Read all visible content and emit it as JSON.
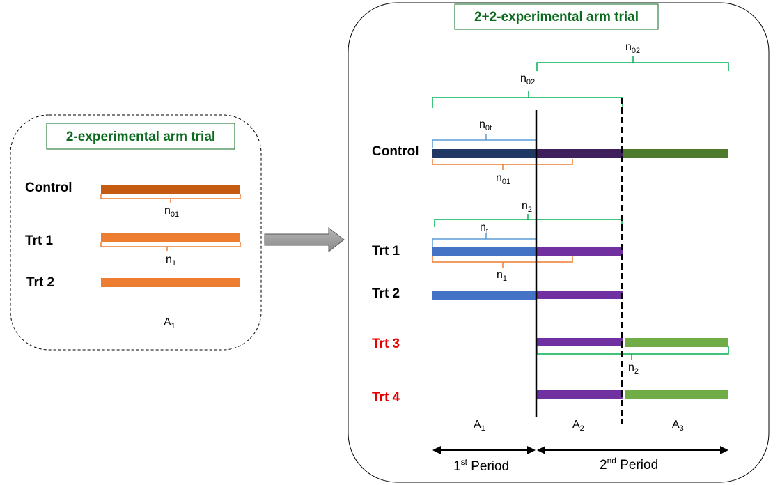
{
  "left_panel": {
    "title": "2-experimental arm trial",
    "arms": [
      "Control",
      "Trt 1",
      "Trt 2"
    ],
    "labels": {
      "n01": {
        "base": "n",
        "sub": "01"
      },
      "n1": {
        "base": "n",
        "sub": "1"
      },
      "A1": {
        "base": "A",
        "sub": "1"
      }
    },
    "colors": {
      "control": "#c55a11",
      "trt1": "#ed7d31",
      "trt2": "#ed7d31"
    }
  },
  "right_panel": {
    "title": "2+2-experimental arm trial",
    "arms": {
      "control": "Control",
      "trt1": "Trt 1",
      "trt2": "Trt 2",
      "trt3": "Trt 3",
      "trt4": "Trt 4"
    },
    "labels": {
      "n02_top": {
        "base": "n",
        "sub": "02"
      },
      "n02_mid": {
        "base": "n",
        "sub": "02"
      },
      "n0t": {
        "base": "n",
        "sub": "0t"
      },
      "n01": {
        "base": "n",
        "sub": "01"
      },
      "n2_top": {
        "base": "n",
        "sub": "2"
      },
      "nt": {
        "base": "n",
        "sub": "t"
      },
      "n1": {
        "base": "n",
        "sub": "1"
      },
      "n2_bottom": {
        "base": "n",
        "sub": "2"
      }
    },
    "areas": {
      "A1": {
        "base": "A",
        "sub": "1"
      },
      "A2": {
        "base": "A",
        "sub": "2"
      },
      "A3": {
        "base": "A",
        "sub": "3"
      }
    },
    "periods": {
      "first": {
        "num": "1",
        "sup": "st",
        "rest": " Period"
      },
      "second": {
        "num": "2",
        "sup": "nd",
        "rest": " Period"
      }
    },
    "colors": {
      "control_p1": "#1f3864",
      "control_p2": "#3f1f5c",
      "control_p3": "#4e7a2e",
      "trt_p1": "#4472c4",
      "trt_p2": "#7030a0",
      "trt_p3": "#70ad47",
      "bracket_green": "#00b050",
      "bracket_blue": "#5b9bd5",
      "bracket_orange": "#ed7d31"
    }
  }
}
